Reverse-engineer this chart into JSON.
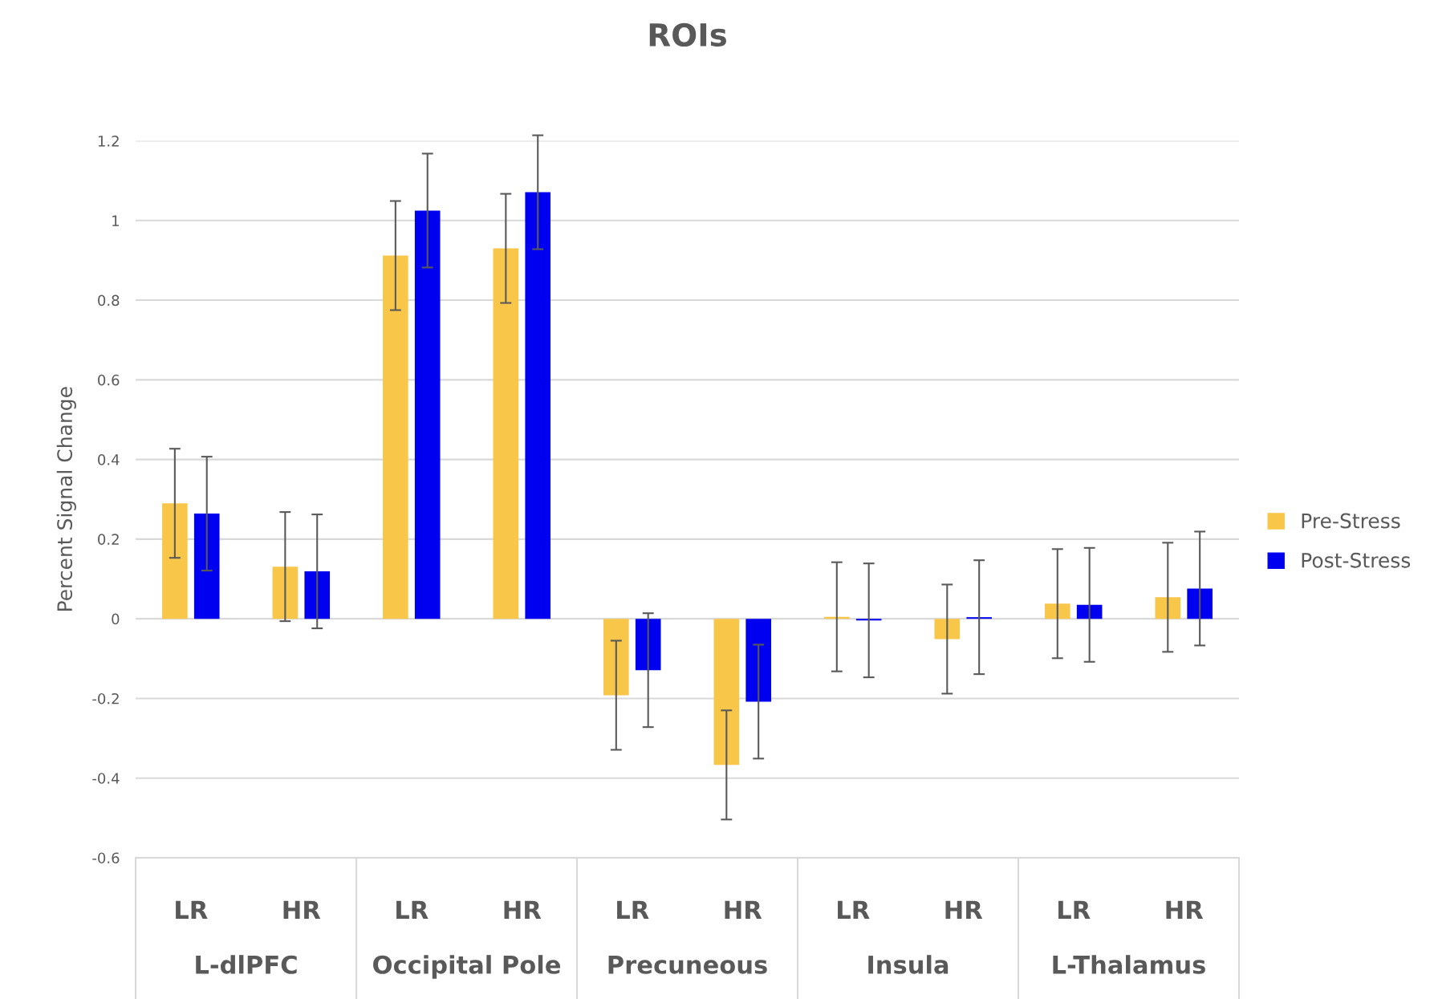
{
  "chart_data": {
    "type": "bar",
    "title": "ROIs",
    "ylabel": "Percent Signal Change",
    "categories": [
      "LR",
      "HR",
      "LR",
      "HR",
      "LR",
      "HR",
      "LR",
      "HR",
      "LR",
      "HR"
    ],
    "annotations": [
      "L-dlPFC",
      "Occipital Pole",
      "Precuneous",
      "Insula",
      "L-Thalamus"
    ],
    "series": [
      {
        "name": "Pre-Stress",
        "color": "#f8c648",
        "values": [
          0.29,
          0.131,
          0.912,
          0.93,
          -0.192,
          -0.367,
          0.005,
          -0.051,
          0.038,
          0.054
        ],
        "errors": [
          0.137,
          0.137,
          0.137,
          0.137,
          0.137,
          0.137,
          0.137,
          0.137,
          0.137,
          0.137
        ]
      },
      {
        "name": "Post-Stress",
        "color": "#0000f0",
        "values": [
          0.264,
          0.119,
          1.025,
          1.071,
          -0.129,
          -0.208,
          -0.004,
          0.004,
          0.035,
          0.076
        ],
        "errors": [
          0.143,
          0.143,
          0.143,
          0.143,
          0.143,
          0.143,
          0.143,
          0.143,
          0.143,
          0.143
        ]
      }
    ],
    "ylim": [
      -0.6,
      1.2
    ],
    "yticks": [
      -0.6,
      -0.4,
      -0.2,
      0,
      0.2,
      0.4,
      0.6,
      0.8,
      1,
      1.2
    ],
    "grid": "y",
    "legend": "right"
  }
}
